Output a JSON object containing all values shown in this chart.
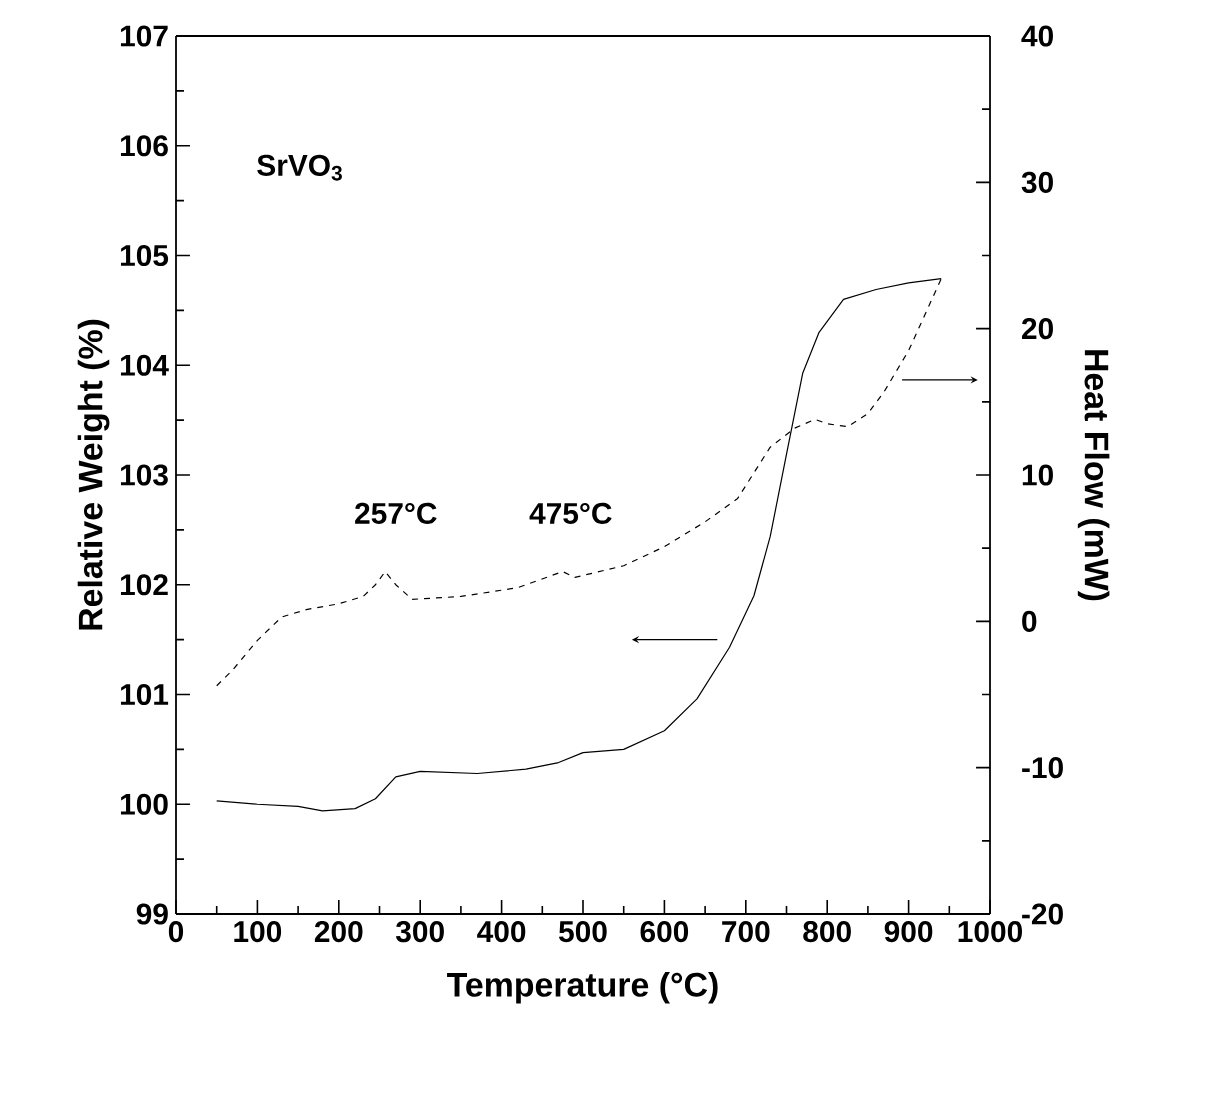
{
  "chart_data": {
    "type": "line",
    "xlabel": "Temperature (°C)",
    "ylabel": "Relative Weight (%)",
    "y2label": "Heat Flow (mW)",
    "x": [
      50,
      100,
      150,
      180,
      220,
      245,
      270,
      300,
      370,
      430,
      470,
      500,
      550,
      600,
      640,
      680,
      710,
      730,
      750,
      770,
      790,
      820,
      860,
      900,
      940
    ],
    "series": [
      {
        "color": "#000000",
        "line_style": "solid",
        "values": [
          100.03,
          100.0,
          99.98,
          99.94,
          99.96,
          100.05,
          100.25,
          100.3,
          100.28,
          100.32,
          100.38,
          100.47,
          100.5,
          100.67,
          100.96,
          101.43,
          101.9,
          102.44,
          103.19,
          103.93,
          104.3,
          104.6,
          104.69,
          104.75,
          104.79
        ]
      },
      {
        "color": "#000000",
        "line_style": "dashed",
        "axis": "y2",
        "x": [
          50,
          70,
          100,
          130,
          160,
          200,
          230,
          245,
          257,
          270,
          290,
          350,
          420,
          475,
          490,
          550,
          600,
          650,
          690,
          730,
          760,
          785,
          800,
          825,
          850,
          870,
          900,
          940
        ],
        "values": [
          -4.4,
          -3.3,
          -1.3,
          0.3,
          0.8,
          1.2,
          1.7,
          2.5,
          3.4,
          2.5,
          1.5,
          1.7,
          2.3,
          3.4,
          3.0,
          3.8,
          5.1,
          6.8,
          8.4,
          11.9,
          13.2,
          13.8,
          13.5,
          13.3,
          14.2,
          15.7,
          18.5,
          23.4
        ]
      }
    ],
    "xlim": [
      0,
      1000
    ],
    "xticks": [
      0,
      100,
      200,
      300,
      400,
      500,
      600,
      700,
      800,
      900,
      1000
    ],
    "ylim": [
      99,
      107
    ],
    "yticks": [
      99,
      100,
      101,
      102,
      103,
      104,
      105,
      106,
      107
    ],
    "y2lim": [
      -20,
      40
    ],
    "y2ticks": [
      -20,
      -10,
      0,
      10,
      20,
      30,
      40
    ],
    "annotations": [
      "SrVO$_{3}$",
      "257°C",
      "475°C"
    ],
    "grid": false,
    "marker": "none"
  }
}
